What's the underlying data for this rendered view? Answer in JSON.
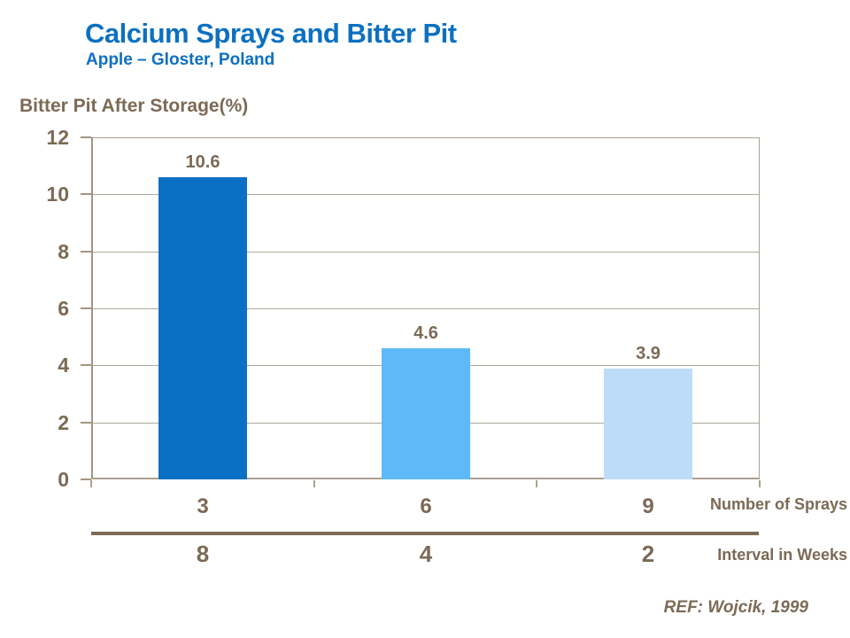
{
  "header": {
    "title": "Calcium Sprays and Bitter Pit",
    "subtitle": "Apple – Gloster, Poland"
  },
  "chart_data": {
    "type": "bar",
    "title": "Bitter Pit After Storage(%)",
    "ylabel": "Bitter Pit After Storage(%)",
    "ylim": [
      0,
      12
    ],
    "yticks": [
      12,
      10,
      8,
      6,
      4,
      2,
      0
    ],
    "grid": true,
    "legend_position": "none",
    "categories": [
      "3",
      "6",
      "9"
    ],
    "values": [
      10.6,
      4.6,
      3.9
    ],
    "value_labels": [
      "10.6",
      "4.6",
      "3.9"
    ],
    "bar_colors": [
      "#0a70c4",
      "#5db9f7",
      "#bddcf8"
    ],
    "x_axis_rows": [
      {
        "labels": [
          "3",
          "6",
          "9"
        ],
        "label": "Number of Sprays"
      },
      {
        "labels": [
          "8",
          "4",
          "2"
        ],
        "label": "Interval in Weeks"
      }
    ]
  },
  "footer": {
    "ref": "REF: Wojcik, 1999"
  },
  "colors": {
    "title_blue": "#0d70c0",
    "text_taupe": "#7b6a55",
    "axis_line": "#a3957f",
    "gridline": "#b0a89b",
    "divider": "#7b6a55",
    "background": "#ffffff"
  }
}
